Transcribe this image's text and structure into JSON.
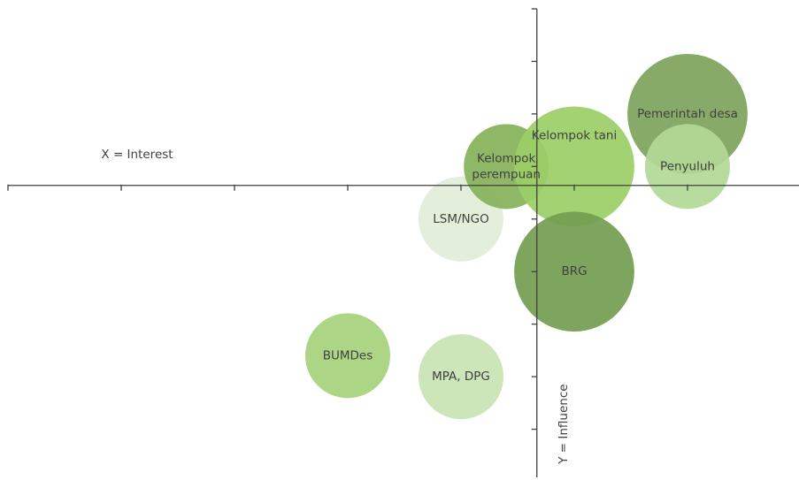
{
  "chart_data": {
    "type": "bubble",
    "x_label": "X = Interest",
    "y_label": "Y = Influence",
    "xlim": [
      0,
      7
    ],
    "ylim": [
      -1,
      8
    ],
    "xticks": [
      0,
      1,
      2,
      3,
      4,
      5,
      6,
      7
    ],
    "yticks": [
      0,
      1,
      2,
      3,
      4,
      5,
      6,
      7,
      8
    ],
    "x_axis_at": 4.64,
    "y_axis_at": 4.67,
    "points": [
      {
        "name": "LSM/NGO",
        "x": 4,
        "y": 4,
        "size": 1,
        "color": "#e2eed8"
      },
      {
        "name": "Kelompok perempuan",
        "x": 4.4,
        "y": 5,
        "size": 1,
        "color": "#86b35a"
      },
      {
        "name": "Kelompok tani",
        "x": 5,
        "y": 5,
        "size": 2,
        "color": "#9bcf66"
      },
      {
        "name": "BRG",
        "x": 5,
        "y": 3,
        "size": 2,
        "color": "#749e51"
      },
      {
        "name": "Pemerintah desa",
        "x": 6,
        "y": 6,
        "size": 2,
        "color": "#7fa45c"
      },
      {
        "name": "Penyuluh",
        "x": 6,
        "y": 5,
        "size": 1,
        "color": "#b3d897"
      },
      {
        "name": "BUMDes",
        "x": 3,
        "y": 1.4,
        "size": 1,
        "color": "#a6d37d"
      },
      {
        "name": "MPA, DPG",
        "x": 4,
        "y": 1,
        "size": 1,
        "color": "#c8e3b4"
      }
    ]
  }
}
